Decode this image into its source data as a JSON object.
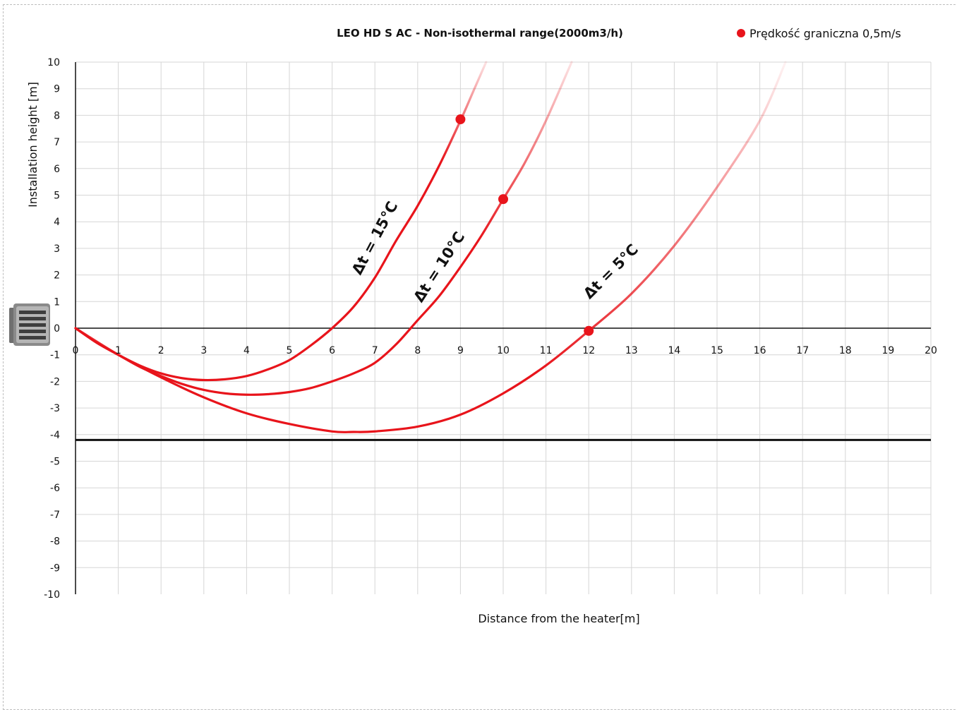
{
  "chart_data": {
    "type": "line",
    "title": "LEO HD S AC - Non-isothermal range(2000m3/h)",
    "xlabel": "Distance from the heater[m]",
    "ylabel": "Installation height [m]",
    "xlim": [
      0,
      20
    ],
    "ylim": [
      -10,
      10
    ],
    "x_ticks": [
      "0",
      "1",
      "2",
      "3",
      "4",
      "5",
      "6",
      "7",
      "8",
      "9",
      "10",
      "11",
      "12",
      "13",
      "14",
      "15",
      "16",
      "17",
      "18",
      "19",
      "20"
    ],
    "y_ticks": [
      "10",
      "9",
      "8",
      "7",
      "6",
      "5",
      "4",
      "3",
      "2",
      "1",
      "0",
      "-1",
      "-2",
      "-3",
      "-4",
      "-5",
      "-6",
      "-7",
      "-8",
      "-9",
      "-10"
    ],
    "grid": true,
    "legend": {
      "placement": "top-right",
      "entries": [
        {
          "label": "Prędkość graniczna 0,5m/s",
          "color": "#e8141b",
          "marker": "circle"
        }
      ]
    },
    "reference_lines": [
      {
        "y": -4.2,
        "color": "#111111"
      }
    ],
    "series": [
      {
        "label": "Δt = 15°C",
        "color": "#e8141b",
        "x": [
          0,
          0.5,
          1,
          1.5,
          2,
          2.5,
          3,
          3.5,
          4,
          4.5,
          5,
          5.5,
          6,
          6.5,
          7,
          7.5,
          8,
          8.5,
          9,
          9.3,
          9.6
        ],
        "y": [
          0,
          -0.55,
          -1.0,
          -1.4,
          -1.7,
          -1.88,
          -1.95,
          -1.92,
          -1.8,
          -1.55,
          -1.2,
          -0.65,
          0.0,
          0.8,
          1.9,
          3.3,
          4.6,
          6.1,
          7.8,
          8.9,
          10.0
        ],
        "limit_point": {
          "x": 9,
          "y": 7.85
        }
      },
      {
        "label": "Δt = 10°C",
        "color": "#e8141b",
        "x": [
          0,
          0.5,
          1,
          1.5,
          2,
          2.5,
          3,
          3.5,
          4,
          4.5,
          5,
          5.5,
          6,
          6.5,
          7,
          7.5,
          8,
          8.5,
          9,
          9.5,
          10,
          10.5,
          11,
          11.6
        ],
        "y": [
          0,
          -0.55,
          -1.0,
          -1.45,
          -1.8,
          -2.1,
          -2.32,
          -2.45,
          -2.5,
          -2.48,
          -2.4,
          -2.25,
          -2.0,
          -1.7,
          -1.3,
          -0.6,
          0.3,
          1.2,
          2.3,
          3.5,
          4.85,
          6.2,
          7.8,
          10.0
        ],
        "limit_point": {
          "x": 10,
          "y": 4.85
        }
      },
      {
        "label": "Δt = 5°C",
        "color": "#e8141b",
        "x": [
          0,
          1,
          2,
          3,
          4,
          5,
          6,
          6.5,
          7,
          8,
          9,
          10,
          11,
          12,
          13,
          14,
          15,
          16,
          16.6
        ],
        "y": [
          0,
          -1.0,
          -1.85,
          -2.6,
          -3.2,
          -3.6,
          -3.88,
          -3.9,
          -3.88,
          -3.7,
          -3.25,
          -2.45,
          -1.4,
          -0.1,
          1.3,
          3.1,
          5.3,
          7.8,
          10.0
        ],
        "limit_point": {
          "x": 12,
          "y": -0.1
        }
      }
    ]
  },
  "icons": {
    "heater": "heater-unit-icon"
  }
}
